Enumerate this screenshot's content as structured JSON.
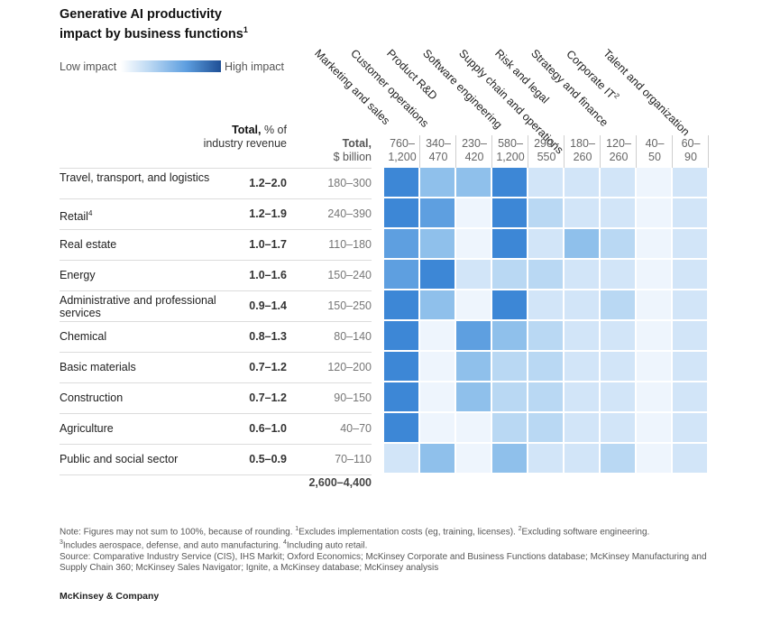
{
  "title": {
    "line1": "Generative AI productivity",
    "line2": "impact by business functions",
    "line2_sup": "1"
  },
  "legend": {
    "low": "Low impact",
    "high": "High impact"
  },
  "headers": {
    "revenue_bold": "Total,",
    "revenue_rest": " % of industry revenue",
    "billion_bold": "Total,",
    "billion_rest": "$ billion"
  },
  "colors": {
    "level1": "#eef5fd",
    "level2": "#d2e5f8",
    "level3": "#b9d8f3",
    "level4": "#8fc0eb",
    "level5": "#5e9fe0",
    "level6": "#3d87d6"
  },
  "chart_data": {
    "type": "heatmap",
    "title": "Generative AI productivity impact by business functions",
    "functions": [
      {
        "name": "Marketing and sales",
        "sup": "",
        "value": "760–\n1,200"
      },
      {
        "name": "Customer operations",
        "sup": "",
        "value": "340–\n470"
      },
      {
        "name": "Product R&D",
        "sup": "",
        "value": "230–\n420"
      },
      {
        "name": "Software engineering",
        "sup": "",
        "value": "580–\n1,200"
      },
      {
        "name": "Supply chain and operations",
        "sup": "",
        "value": "290–\n550"
      },
      {
        "name": "Risk and legal",
        "sup": "",
        "value": "180–\n260"
      },
      {
        "name": "Strategy and finance",
        "sup": "",
        "value": "120–\n260"
      },
      {
        "name": "Corporate IT",
        "sup": "2",
        "value": "40–\n50"
      },
      {
        "name": "Talent and organization",
        "sup": "",
        "value": "60–\n90"
      }
    ],
    "industries": [
      {
        "name": "Travel, transport, and logistics",
        "sup": "",
        "revenue_pct": "1.2–2.0",
        "total_billion": "180–300",
        "intensity": [
          6,
          4,
          4,
          6,
          2,
          2,
          2,
          1,
          2
        ]
      },
      {
        "name": "Retail",
        "sup": "4",
        "revenue_pct": "1.2–1.9",
        "total_billion": "240–390",
        "intensity": [
          6,
          5,
          1,
          6,
          3,
          2,
          2,
          1,
          2
        ]
      },
      {
        "name": "Real estate",
        "sup": "",
        "revenue_pct": "1.0–1.7",
        "total_billion": "110–180",
        "intensity": [
          5,
          4,
          1,
          6,
          2,
          4,
          3,
          1,
          2
        ]
      },
      {
        "name": "Energy",
        "sup": "",
        "revenue_pct": "1.0–1.6",
        "total_billion": "150–240",
        "intensity": [
          5,
          6,
          2,
          3,
          3,
          2,
          2,
          1,
          2
        ]
      },
      {
        "name": "Administrative and professional services",
        "sup": "",
        "revenue_pct": "0.9–1.4",
        "total_billion": "150–250",
        "intensity": [
          6,
          4,
          1,
          6,
          2,
          2,
          3,
          1,
          2
        ]
      },
      {
        "name": "Chemical",
        "sup": "",
        "revenue_pct": "0.8–1.3",
        "total_billion": "80–140",
        "intensity": [
          6,
          1,
          5,
          4,
          3,
          2,
          2,
          1,
          2
        ]
      },
      {
        "name": "Basic materials",
        "sup": "",
        "revenue_pct": "0.7–1.2",
        "total_billion": "120–200",
        "intensity": [
          6,
          1,
          4,
          3,
          3,
          2,
          2,
          1,
          2
        ]
      },
      {
        "name": "Construction",
        "sup": "",
        "revenue_pct": "0.7–1.2",
        "total_billion": "90–150",
        "intensity": [
          6,
          1,
          4,
          3,
          3,
          2,
          2,
          1,
          2
        ]
      },
      {
        "name": "Agriculture",
        "sup": "",
        "revenue_pct": "0.6–1.0",
        "total_billion": "40–70",
        "intensity": [
          6,
          1,
          1,
          3,
          3,
          2,
          2,
          1,
          2
        ]
      },
      {
        "name": "Public and social sector",
        "sup": "",
        "revenue_pct": "0.5–0.9",
        "total_billion": "70–110",
        "intensity": [
          2,
          4,
          1,
          4,
          2,
          2,
          3,
          1,
          2
        ]
      }
    ],
    "total_billion_sum": "2,600–4,400",
    "intensity_scale": "1 = low impact ... 6 = high impact"
  },
  "notes": {
    "line1_a": "Note: Figures may not sum to 100%, because of rounding. ",
    "sup1": "1",
    "line1_b": "Excludes implementation costs (eg, training, licenses). ",
    "sup2": "2",
    "line1_c": "Excluding software engineering.",
    "sup3": "3",
    "line2_a": "Includes aerospace, defense, and auto manufacturing. ",
    "sup4": "4",
    "line2_b": "Including auto retail.",
    "source": "Source: Comparative Industry Service (CIS), IHS Markit; Oxford Economics; McKinsey Corporate and Business Functions database; McKinsey Manufacturing and Supply Chain 360; McKinsey Sales Navigator; Ignite, a McKinsey database; McKinsey analysis"
  },
  "brand": "McKinsey & Company"
}
